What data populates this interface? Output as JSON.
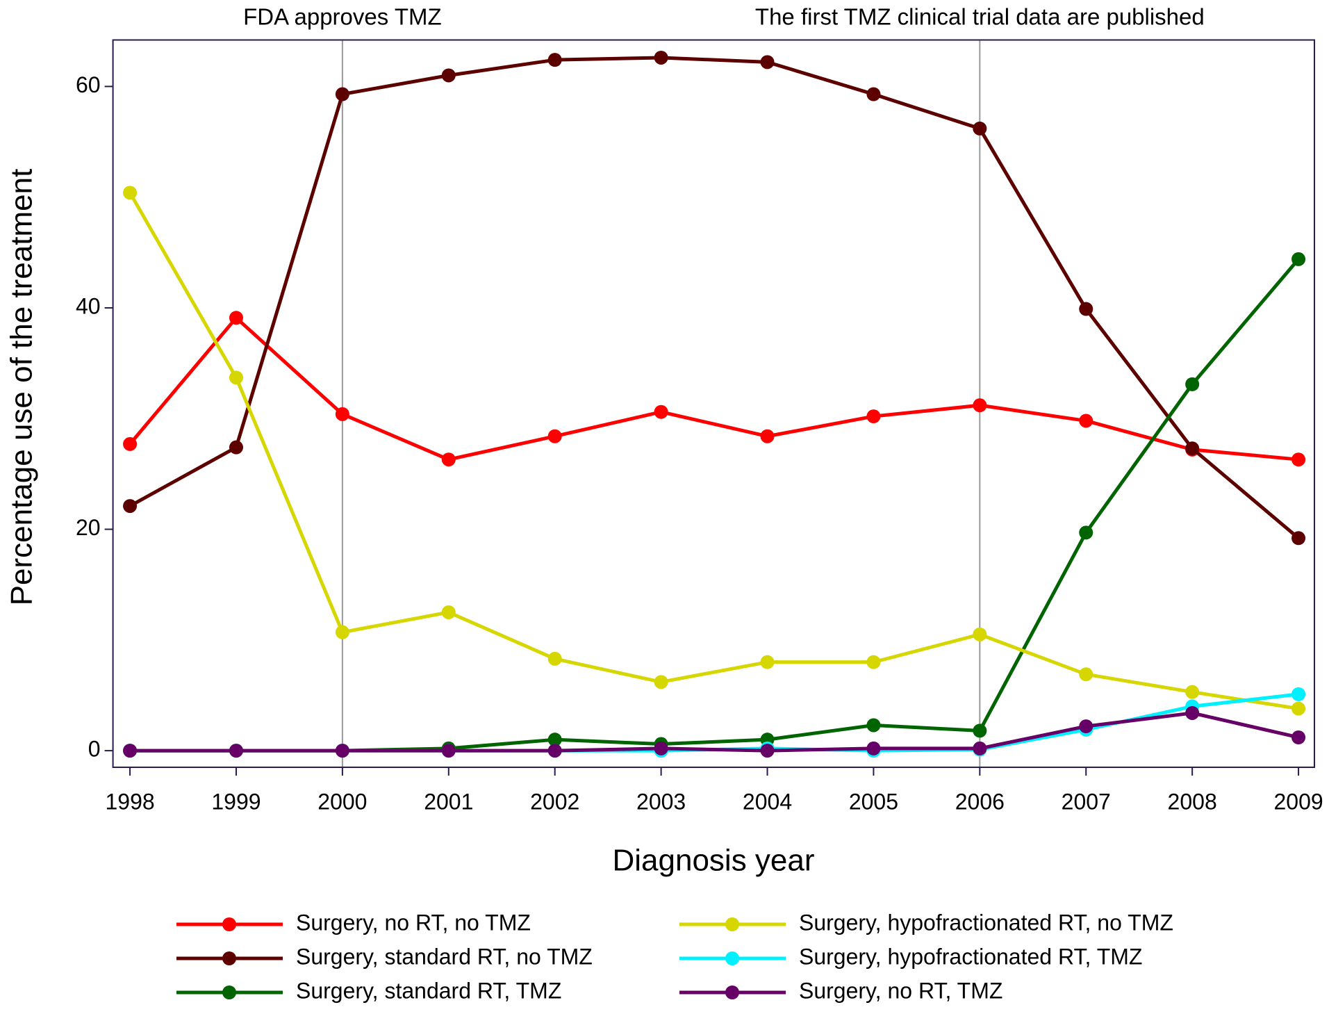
{
  "chart_data": {
    "type": "line",
    "x_label": "Diagnosis year",
    "y_label": "Percentage use of the treatment",
    "x": [
      1998,
      1999,
      2000,
      2001,
      2002,
      2003,
      2004,
      2005,
      2006,
      2007,
      2008,
      2009
    ],
    "xlim": [
      1997.84,
      2009.15
    ],
    "xticks": [
      1998,
      1999,
      2000,
      2001,
      2002,
      2003,
      2004,
      2005,
      2006,
      2007,
      2008,
      2009
    ],
    "ylim": [
      -1.5,
      64.2
    ],
    "yticks": [
      0,
      20,
      40,
      60
    ],
    "grid": false,
    "annotations": [
      {
        "x": 2000,
        "text": "FDA approves TMZ"
      },
      {
        "x": 2006,
        "text": "The first TMZ clinical trial data are published"
      }
    ],
    "series": [
      {
        "name": "Surgery, no RT, no TMZ",
        "color": "#ff0000",
        "values": [
          27.7,
          39.1,
          30.4,
          26.3,
          28.4,
          30.6,
          28.4,
          30.2,
          31.2,
          29.8,
          27.2,
          26.3
        ]
      },
      {
        "name": "Surgery, standard RT, no TMZ",
        "color": "#5c0000",
        "values": [
          22.1,
          27.4,
          59.3,
          61.0,
          62.4,
          62.6,
          62.2,
          59.3,
          56.2,
          39.9,
          27.3,
          19.2
        ]
      },
      {
        "name": "Surgery, standard RT, TMZ",
        "color": "#006400",
        "values": [
          0,
          0,
          0,
          0.2,
          1.0,
          0.6,
          1.0,
          2.3,
          1.8,
          19.7,
          33.1,
          44.4
        ]
      },
      {
        "name": "Surgery, hypofractionated RT, no TMZ",
        "color": "#d6d600",
        "values": [
          50.4,
          33.7,
          10.7,
          12.5,
          8.3,
          6.2,
          8.0,
          8.0,
          10.5,
          6.9,
          5.3,
          3.8
        ]
      },
      {
        "name": "Surgery, hypofractionated RT, TMZ",
        "color": "#00f0ff",
        "values": [
          0,
          0,
          0,
          0,
          0,
          0,
          0.2,
          0,
          0.1,
          1.9,
          4.0,
          5.1
        ]
      },
      {
        "name": "Surgery, no RT, TMZ",
        "color": "#660066",
        "values": [
          0,
          0,
          0,
          0,
          0,
          0.2,
          0,
          0.2,
          0.2,
          2.2,
          3.4,
          1.2
        ]
      }
    ]
  }
}
